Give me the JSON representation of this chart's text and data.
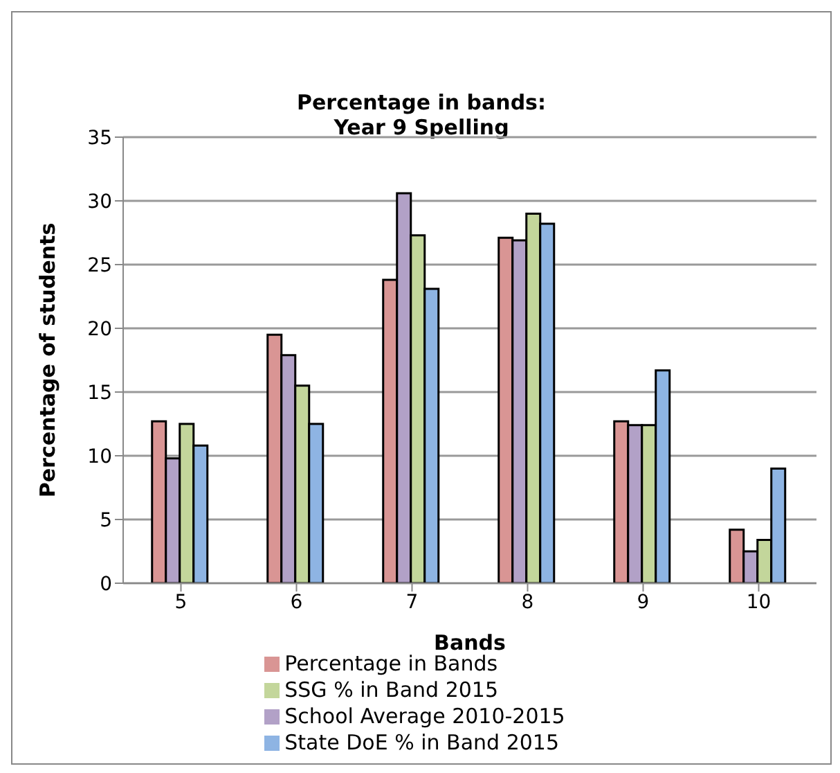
{
  "chart_data": {
    "type": "bar",
    "title": "Percentage in bands:\nYear 9 Spelling",
    "xlabel": "Bands",
    "ylabel": "Percentage of students",
    "categories": [
      "5",
      "6",
      "7",
      "8",
      "9",
      "10"
    ],
    "series": [
      {
        "name": "Percentage in Bands",
        "color": "#d99594",
        "values": [
          12.7,
          19.5,
          23.8,
          27.1,
          12.7,
          4.2
        ]
      },
      {
        "name": "School Average 2010-2015",
        "color": "#b2a1c7",
        "values": [
          9.8,
          17.9,
          30.6,
          26.9,
          12.4,
          2.5
        ]
      },
      {
        "name": "SSG % in Band 2015",
        "color": "#c3d69b",
        "values": [
          12.5,
          15.5,
          27.3,
          29.0,
          12.4,
          3.4
        ]
      },
      {
        "name": "State DoE % in Band 2015",
        "color": "#8eb4e3",
        "values": [
          10.8,
          12.5,
          23.1,
          28.2,
          16.7,
          9.0
        ]
      }
    ],
    "ylim": [
      0,
      35
    ],
    "yticks": [
      0,
      5,
      10,
      15,
      20,
      25,
      30,
      35
    ],
    "grid": "y",
    "legend": "bottom"
  }
}
